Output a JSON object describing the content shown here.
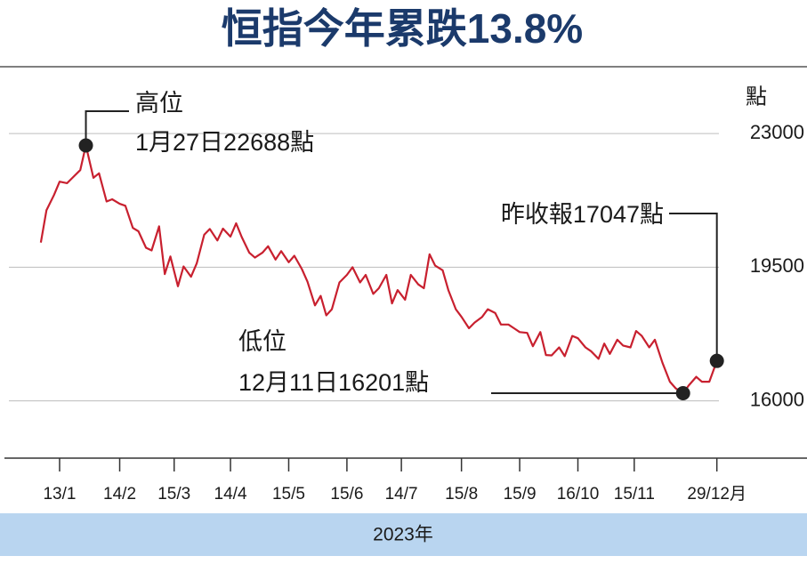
{
  "chart_data": {
    "type": "line",
    "title": "恒指今年累跌13.8%",
    "y_unit": "點",
    "x_label": "2023年",
    "color": "#c8202f",
    "x": [
      3,
      6,
      10,
      13,
      17,
      20,
      24,
      27,
      31,
      34,
      38,
      41,
      45,
      48,
      52,
      55,
      59,
      62,
      66,
      69,
      72,
      76,
      79,
      83,
      86,
      90,
      93,
      97,
      100,
      104,
      107,
      110,
      114,
      117,
      121,
      124,
      128,
      131,
      135,
      138,
      142,
      145,
      149,
      152,
      155,
      158,
      162,
      166,
      169,
      173,
      176,
      180,
      183,
      187,
      190,
      193,
      197,
      200,
      204,
      207,
      210,
      213,
      217,
      220,
      224,
      227,
      231,
      234,
      238,
      241,
      245,
      248,
      252,
      255,
      258,
      262,
      265,
      269,
      272,
      275,
      279,
      282,
      286,
      289,
      293,
      296,
      300,
      303,
      306,
      310,
      313,
      317,
      320,
      323,
      327,
      330,
      334,
      338,
      341,
      345,
      348,
      352,
      355,
      359,
      363
    ],
    "values": [
      20145,
      20990,
      21390,
      21740,
      21700,
      21850,
      22044,
      22688,
      21840,
      21960,
      21220,
      21280,
      21160,
      21110,
      20530,
      20440,
      20010,
      19940,
      20570,
      19320,
      19780,
      19000,
      19520,
      19250,
      19600,
      20350,
      20500,
      20200,
      20510,
      20300,
      20650,
      20290,
      19880,
      19750,
      19880,
      20050,
      19700,
      19920,
      19630,
      19800,
      19450,
      19120,
      18500,
      18750,
      18240,
      18400,
      19100,
      19300,
      19500,
      19100,
      19300,
      18800,
      18950,
      19300,
      18550,
      18900,
      18650,
      19300,
      19050,
      18950,
      19840,
      19540,
      19420,
      18900,
      18400,
      18200,
      17900,
      18050,
      18200,
      18400,
      18300,
      18000,
      18000,
      17900,
      17800,
      17780,
      17430,
      17800,
      17200,
      17190,
      17400,
      17170,
      17700,
      17640,
      17400,
      17300,
      17100,
      17500,
      17230,
      17600,
      17450,
      17400,
      17830,
      17700,
      17400,
      17600,
      17000,
      16500,
      16330,
      16201,
      16400,
      16630,
      16500,
      16500,
      17047
    ],
    "xlim": [
      -14,
      411
    ],
    "xticks": [
      {
        "value": 13,
        "label": "13/1"
      },
      {
        "value": 45,
        "label": "14/2"
      },
      {
        "value": 74,
        "label": "15/3"
      },
      {
        "value": 104,
        "label": "14/4"
      },
      {
        "value": 135,
        "label": "15/5"
      },
      {
        "value": 166,
        "label": "15/6"
      },
      {
        "value": 195,
        "label": "14/7"
      },
      {
        "value": 227,
        "label": "15/8"
      },
      {
        "value": 258,
        "label": "15/9"
      },
      {
        "value": 289,
        "label": "16/10"
      },
      {
        "value": 319,
        "label": "15/11"
      },
      {
        "value": 363,
        "label": "29/12月"
      }
    ],
    "ylim": [
      14500,
      24750
    ],
    "yticks": [
      16000,
      19500,
      23000
    ],
    "grid": true,
    "annotations": {
      "high": {
        "label": "高位",
        "text": "1月27日22688點"
      },
      "low": {
        "label": "低位",
        "text": "12月11日16201點"
      },
      "last": {
        "text": "昨收報17047點"
      }
    }
  }
}
